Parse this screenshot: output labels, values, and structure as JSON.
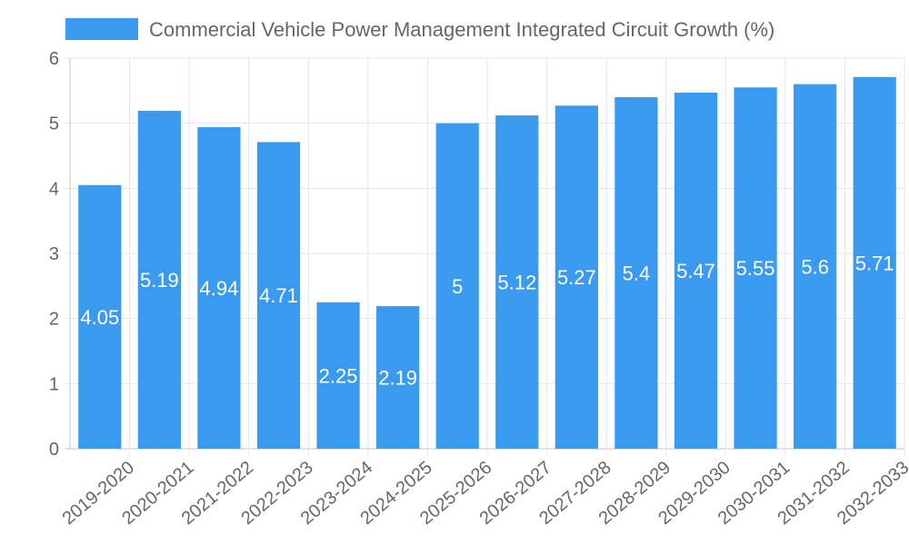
{
  "chart_data": {
    "type": "bar",
    "categories": [
      "2019-2020",
      "2020-2021",
      "2021-2022",
      "2022-2023",
      "2023-2024",
      "2024-2025",
      "2025-2026",
      "2026-2027",
      "2027-2028",
      "2028-2029",
      "2029-2030",
      "2030-2031",
      "2031-2032",
      "2032-2033"
    ],
    "series": [
      {
        "name": "Commercial Vehicle Power Management Integrated Circuit Growth (%)",
        "values": [
          4.05,
          5.19,
          4.94,
          4.71,
          2.25,
          2.19,
          5,
          5.12,
          5.27,
          5.4,
          5.47,
          5.55,
          5.6,
          5.71
        ],
        "color": "#3a9af0"
      }
    ],
    "ylim": [
      0,
      6
    ],
    "yticks": [
      0,
      1,
      2,
      3,
      4,
      5,
      6
    ],
    "grid": true,
    "legend": "top"
  }
}
